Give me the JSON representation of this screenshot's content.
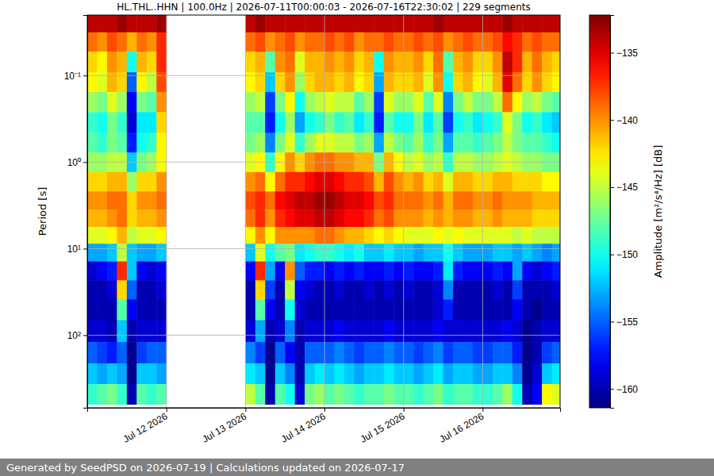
{
  "chart_data": {
    "type": "heatmap",
    "title": "HL.THL..HHN | 100.0Hz | 2026-07-11T00:00:03 - 2026-07-16T22:30:02 | 229 segments",
    "y_label": "Period [s]",
    "footer": "Generated by SeedPSD on 2026-07-19 | Calculations updated on 2026-07-17",
    "log": "y",
    "grid": true,
    "xlim": [
      "2026-07-11T00:00",
      "2026-07-16T23:30"
    ],
    "xticks": [
      {
        "value": "2026-07-12T00:00",
        "label": "Jul 12 2026"
      },
      {
        "value": "2026-07-13T00:00",
        "label": "Jul 13 2026"
      },
      {
        "value": "2026-07-14T00:00",
        "label": "Jul 14 2026"
      },
      {
        "value": "2026-07-15T00:00",
        "label": "Jul 15 2026"
      },
      {
        "value": "2026-07-16T00:00",
        "label": "Jul 16 2026"
      }
    ],
    "ylim": [
      0.02,
      690
    ],
    "yticks": [
      {
        "value": 0.1,
        "label": "10⁻¹"
      },
      {
        "value": 1,
        "label": "10⁰"
      },
      {
        "value": 10,
        "label": "10¹"
      },
      {
        "value": 100,
        "label": "10²"
      }
    ],
    "x": [
      "2026-07-11T00:00",
      "2026-07-11T03:00",
      "2026-07-11T06:00",
      "2026-07-11T09:00",
      "2026-07-11T12:00",
      "2026-07-11T15:00",
      "2026-07-11T18:00",
      "2026-07-11T21:00",
      "2026-07-12T00:00",
      "2026-07-12T03:00",
      "2026-07-12T06:00",
      "2026-07-12T09:00",
      "2026-07-12T12:00",
      "2026-07-12T15:00",
      "2026-07-12T18:00",
      "2026-07-12T21:00",
      "2026-07-13T00:00",
      "2026-07-13T03:00",
      "2026-07-13T06:00",
      "2026-07-13T09:00",
      "2026-07-13T12:00",
      "2026-07-13T15:00",
      "2026-07-13T18:00",
      "2026-07-13T21:00",
      "2026-07-14T00:00",
      "2026-07-14T03:00",
      "2026-07-14T06:00",
      "2026-07-14T09:00",
      "2026-07-14T12:00",
      "2026-07-14T15:00",
      "2026-07-14T18:00",
      "2026-07-14T21:00",
      "2026-07-15T00:00",
      "2026-07-15T03:00",
      "2026-07-15T06:00",
      "2026-07-15T09:00",
      "2026-07-15T12:00",
      "2026-07-15T15:00",
      "2026-07-15T18:00",
      "2026-07-15T21:00",
      "2026-07-16T00:00",
      "2026-07-16T03:00",
      "2026-07-16T06:00",
      "2026-07-16T09:00",
      "2026-07-16T12:00",
      "2026-07-16T15:00",
      "2026-07-16T18:00",
      "2026-07-16T21:00"
    ],
    "y": [
      0.025,
      0.04,
      0.07,
      0.12,
      0.2,
      0.35,
      0.6,
      1.0,
      1.7,
      2.8,
      4.5,
      7,
      11,
      18,
      30,
      50,
      90,
      160,
      280,
      480
    ],
    "values": [
      [
        -134,
        -134,
        -134,
        -133,
        -134,
        -134,
        -134,
        -133,
        null,
        null,
        null,
        null,
        null,
        null,
        null,
        null,
        -134,
        -133,
        -134,
        -134,
        -134,
        -134,
        -134,
        -134,
        -134,
        -134,
        -134,
        -134,
        -134,
        -134,
        -134,
        -134,
        -134,
        -134,
        -134,
        -133,
        -134,
        -134,
        -134,
        -134,
        -134,
        -134,
        -133,
        -134,
        -134,
        -134,
        -134,
        -134
      ],
      [
        -139,
        -140,
        -138,
        -139,
        -141,
        -139,
        -140,
        -137,
        null,
        null,
        null,
        null,
        null,
        null,
        null,
        null,
        -139,
        -138,
        -140,
        -139,
        -138,
        -140,
        -139,
        -139,
        -138,
        -139,
        -138,
        -140,
        -139,
        -139,
        -138,
        -139,
        -139,
        -138,
        -139,
        -138,
        -140,
        -139,
        -138,
        -139,
        -139,
        -138,
        -136,
        -137,
        -139,
        -138,
        -139,
        -139
      ],
      [
        -142,
        -143,
        -140,
        -141,
        -150,
        -141,
        -142,
        -137,
        null,
        null,
        null,
        null,
        null,
        null,
        null,
        null,
        -142,
        -141,
        -148,
        -140,
        -139,
        -144,
        -141,
        -141,
        -140,
        -141,
        -140,
        -142,
        -141,
        -150,
        -140,
        -141,
        -141,
        -140,
        -142,
        -139,
        -148,
        -141,
        -140,
        -142,
        -142,
        -140,
        -134,
        -137,
        -141,
        -139,
        -141,
        -142
      ],
      [
        -143,
        -144,
        -141,
        -142,
        -155,
        -143,
        -145,
        -138,
        null,
        null,
        null,
        null,
        null,
        null,
        null,
        null,
        -143,
        -142,
        -152,
        -142,
        -140,
        -146,
        -142,
        -141,
        -141,
        -142,
        -141,
        -143,
        -142,
        -153,
        -141,
        -142,
        -142,
        -141,
        -144,
        -140,
        -150,
        -142,
        -141,
        -143,
        -144,
        -141,
        -135,
        -139,
        -142,
        -140,
        -142,
        -143
      ],
      [
        -146,
        -147,
        -144,
        -146,
        -158,
        -147,
        -148,
        -140,
        null,
        null,
        null,
        null,
        null,
        null,
        null,
        null,
        -146,
        -145,
        -156,
        -147,
        -143,
        -150,
        -146,
        -145,
        -144,
        -145,
        -145,
        -148,
        -146,
        -156,
        -144,
        -146,
        -146,
        -144,
        -148,
        -144,
        -154,
        -147,
        -145,
        -147,
        -147,
        -145,
        -139,
        -143,
        -146,
        -145,
        -147,
        -148
      ],
      [
        -149,
        -150,
        -147,
        -149,
        -159,
        -151,
        -151,
        -142,
        null,
        null,
        null,
        null,
        null,
        null,
        null,
        null,
        -148,
        -148,
        -157,
        -150,
        -146,
        -153,
        -150,
        -149,
        -147,
        -149,
        -148,
        -151,
        -149,
        -157,
        -148,
        -150,
        -150,
        -147,
        -151,
        -148,
        -156,
        -150,
        -149,
        -151,
        -150,
        -149,
        -144,
        -147,
        -150,
        -149,
        -151,
        -152
      ],
      [
        -148,
        -149,
        -147,
        -148,
        -157,
        -150,
        -149,
        -143,
        null,
        null,
        null,
        null,
        null,
        null,
        null,
        null,
        -147,
        -146,
        -154,
        -147,
        -144,
        -149,
        -146,
        -144,
        -144,
        -145,
        -145,
        -147,
        -146,
        -153,
        -145,
        -147,
        -148,
        -146,
        -149,
        -147,
        -153,
        -148,
        -148,
        -149,
        -148,
        -147,
        -145,
        -147,
        -148,
        -148,
        -149,
        -150
      ],
      [
        -146,
        -146,
        -145,
        -145,
        -152,
        -147,
        -146,
        -143,
        null,
        null,
        null,
        null,
        null,
        null,
        null,
        null,
        -144,
        -143,
        -149,
        -143,
        -140,
        -142,
        -140,
        -139,
        -139,
        -140,
        -140,
        -141,
        -141,
        -147,
        -141,
        -143,
        -145,
        -144,
        -146,
        -145,
        -149,
        -145,
        -145,
        -146,
        -146,
        -145,
        -144,
        -145,
        -146,
        -146,
        -147,
        -147
      ],
      [
        -142,
        -142,
        -141,
        -141,
        -146,
        -142,
        -142,
        -140,
        null,
        null,
        null,
        null,
        null,
        null,
        null,
        null,
        -140,
        -139,
        -143,
        -139,
        -137,
        -137,
        -136,
        -135,
        -135,
        -136,
        -137,
        -137,
        -138,
        -141,
        -138,
        -140,
        -141,
        -140,
        -142,
        -141,
        -144,
        -141,
        -141,
        -142,
        -142,
        -141,
        -141,
        -142,
        -142,
        -142,
        -143,
        -143
      ],
      [
        -140,
        -140,
        -139,
        -139,
        -142,
        -140,
        -140,
        -139,
        null,
        null,
        null,
        null,
        null,
        null,
        null,
        null,
        -138,
        -137,
        -139,
        -136,
        -135,
        -134,
        -134,
        -133,
        -133,
        -134,
        -135,
        -135,
        -136,
        -138,
        -137,
        -139,
        -139,
        -139,
        -140,
        -139,
        -141,
        -139,
        -139,
        -140,
        -140,
        -139,
        -140,
        -140,
        -140,
        -141,
        -141,
        -141
      ],
      [
        -141,
        -141,
        -140,
        -139,
        -142,
        -141,
        -141,
        -140,
        null,
        null,
        null,
        null,
        null,
        null,
        null,
        null,
        -139,
        -137,
        -140,
        -137,
        -136,
        -135,
        -135,
        -134,
        -134,
        -135,
        -136,
        -136,
        -137,
        -139,
        -138,
        -140,
        -140,
        -140,
        -141,
        -140,
        -141,
        -140,
        -140,
        -141,
        -141,
        -140,
        -141,
        -141,
        -141,
        -142,
        -142,
        -142
      ],
      [
        -144,
        -144,
        -143,
        -141,
        -145,
        -144,
        -144,
        -143,
        null,
        null,
        null,
        null,
        null,
        null,
        null,
        null,
        -143,
        -140,
        -143,
        -140,
        -140,
        -140,
        -140,
        -139,
        -139,
        -140,
        -141,
        -141,
        -142,
        -143,
        -142,
        -143,
        -144,
        -144,
        -144,
        -143,
        -144,
        -143,
        -144,
        -144,
        -144,
        -144,
        -144,
        -145,
        -144,
        -145,
        -145,
        -145
      ],
      [
        -153,
        -153,
        -152,
        -145,
        -152,
        -153,
        -153,
        -152,
        null,
        null,
        null,
        null,
        null,
        null,
        null,
        null,
        -152,
        -144,
        -150,
        -148,
        -147,
        -151,
        -150,
        -149,
        -149,
        -150,
        -151,
        -150,
        -152,
        -152,
        -151,
        -152,
        -152,
        -153,
        -152,
        -152,
        -150,
        -152,
        -153,
        -153,
        -153,
        -152,
        -152,
        -153,
        -152,
        -153,
        -154,
        -153
      ],
      [
        -159,
        -158,
        -157,
        -137,
        -152,
        -158,
        -159,
        -158,
        null,
        null,
        null,
        null,
        null,
        null,
        null,
        null,
        -158,
        -137,
        -153,
        -158,
        -140,
        -155,
        -157,
        -157,
        -158,
        -157,
        -158,
        -157,
        -158,
        -158,
        -157,
        -158,
        -157,
        -158,
        -158,
        -157,
        -151,
        -157,
        -158,
        -158,
        -158,
        -157,
        -158,
        -153,
        -158,
        -159,
        -158,
        -157
      ],
      [
        -160,
        -160,
        -159,
        -142,
        -155,
        -160,
        -160,
        -159,
        null,
        null,
        null,
        null,
        null,
        null,
        null,
        null,
        -160,
        -142,
        -156,
        -160,
        -145,
        -158,
        -159,
        -160,
        -160,
        -159,
        -160,
        -160,
        -159,
        -160,
        -159,
        -160,
        -159,
        -160,
        -160,
        -159,
        -154,
        -160,
        -160,
        -160,
        -160,
        -159,
        -160,
        -156,
        -160,
        -160,
        -160,
        -159
      ],
      [
        -160,
        -160,
        -160,
        -148,
        -158,
        -160,
        -160,
        -160,
        null,
        null,
        null,
        null,
        null,
        null,
        null,
        null,
        -160,
        -148,
        -158,
        -160,
        -150,
        -159,
        -160,
        -160,
        -160,
        -160,
        -160,
        -160,
        -160,
        -160,
        -160,
        -160,
        -160,
        -160,
        -160,
        -159,
        -157,
        -160,
        -160,
        -160,
        -160,
        -160,
        -160,
        -158,
        -160,
        -161,
        -160,
        -160
      ],
      [
        -159,
        -159,
        -160,
        -152,
        -160,
        -159,
        -159,
        -159,
        null,
        null,
        null,
        null,
        null,
        null,
        null,
        null,
        -159,
        -153,
        -160,
        -159,
        -154,
        -160,
        -159,
        -159,
        -159,
        -158,
        -159,
        -159,
        -159,
        -159,
        -158,
        -159,
        -159,
        -159,
        -159,
        -158,
        -159,
        -159,
        -159,
        -159,
        -159,
        -159,
        -158,
        -159,
        -161,
        -160,
        -159,
        -159
      ],
      [
        -155,
        -156,
        -157,
        -155,
        -161,
        -156,
        -155,
        -155,
        null,
        null,
        null,
        null,
        null,
        null,
        null,
        null,
        -154,
        -156,
        -161,
        -155,
        -158,
        -160,
        -155,
        -155,
        -155,
        -154,
        -155,
        -156,
        -155,
        -155,
        -154,
        -155,
        -155,
        -156,
        -155,
        -154,
        -156,
        -155,
        -155,
        -156,
        -156,
        -155,
        -155,
        -157,
        -161,
        -160,
        -156,
        -155
      ],
      [
        -152,
        -153,
        -152,
        -153,
        -161,
        -152,
        -152,
        -153,
        null,
        null,
        null,
        null,
        null,
        null,
        null,
        null,
        -151,
        -152,
        -161,
        -152,
        -154,
        -160,
        -152,
        -151,
        -152,
        -151,
        -152,
        -153,
        -152,
        -152,
        -151,
        -152,
        -152,
        -153,
        -152,
        -151,
        -153,
        -152,
        -152,
        -153,
        -153,
        -152,
        -152,
        -154,
        -161,
        -159,
        -152,
        -151
      ],
      [
        -149,
        -148,
        -147,
        -149,
        -160,
        -148,
        -149,
        -148,
        null,
        null,
        null,
        null,
        null,
        null,
        null,
        null,
        -145,
        -148,
        -160,
        -148,
        -150,
        -159,
        -147,
        -146,
        -148,
        -147,
        -148,
        -149,
        -148,
        -148,
        -147,
        -148,
        -148,
        -149,
        -148,
        -147,
        -149,
        -148,
        -148,
        -149,
        -149,
        -148,
        -146,
        -150,
        -160,
        -158,
        -143,
        -144
      ]
    ],
    "colorbar": {
      "label": "Amplitude [m²/s⁴/Hz] [dB]",
      "range": [
        -161.4,
        -132.2
      ],
      "ticks": [
        {
          "value": -160,
          "label": "−160"
        },
        {
          "value": -155,
          "label": "−155"
        },
        {
          "value": -150,
          "label": "−150"
        },
        {
          "value": -145,
          "label": "−145"
        },
        {
          "value": -140,
          "label": "−140"
        },
        {
          "value": -135,
          "label": "−135"
        }
      ]
    }
  }
}
